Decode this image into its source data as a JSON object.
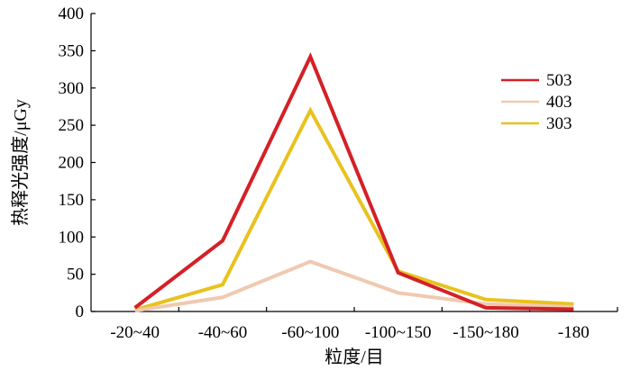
{
  "chart_data": {
    "type": "line",
    "categories": [
      "-20~40",
      "-40~60",
      "-60~100",
      "-100~150",
      "-150~180",
      "-180"
    ],
    "series": [
      {
        "name": "503",
        "color": "#d42027",
        "values": [
          5,
          95,
          342,
          52,
          5,
          3
        ]
      },
      {
        "name": "403",
        "color": "#f0c9b0",
        "values": [
          1,
          19,
          67,
          25,
          10,
          6
        ]
      },
      {
        "name": "303",
        "color": "#e8c21e",
        "values": [
          2,
          36,
          270,
          54,
          16,
          10
        ]
      }
    ],
    "title": "",
    "xlabel": "粒度/目",
    "ylabel": "热释光强度/μGy",
    "ylim": [
      0,
      400
    ],
    "yticks": [
      0,
      50,
      100,
      150,
      200,
      250,
      300,
      350,
      400
    ],
    "grid": false,
    "legend_position": "right"
  }
}
